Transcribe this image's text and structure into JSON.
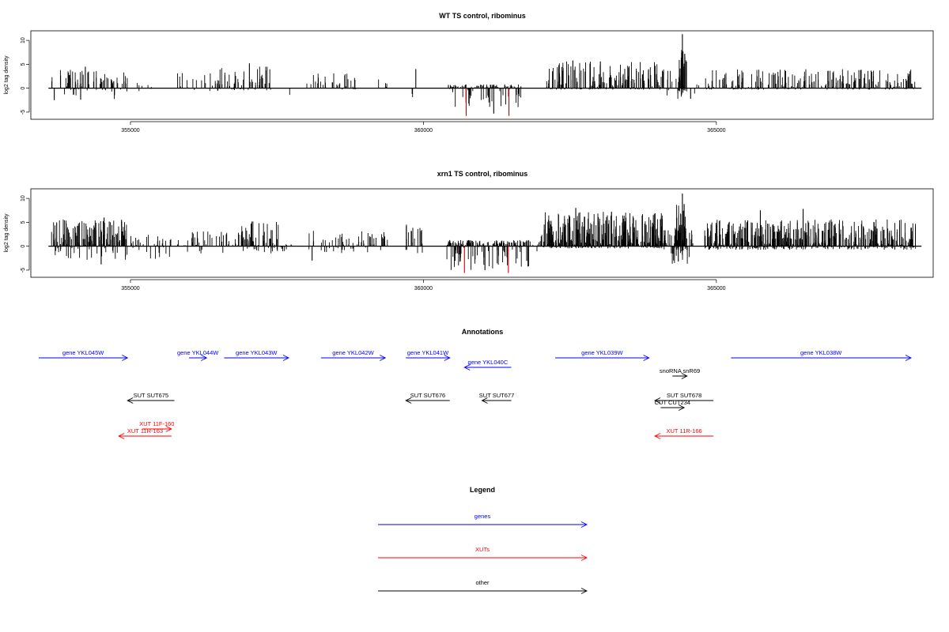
{
  "figure": {
    "annotations_title": "Annotations",
    "legend_title": "Legend"
  },
  "chart_data": [
    {
      "type": "bar",
      "title": "WT TS control, ribominus",
      "ylabel": "log2 tag density",
      "xlabel": "",
      "xlim": [
        353300,
        368700
      ],
      "ylim": [
        -6.5,
        12
      ],
      "yticks": [
        -5,
        0,
        5,
        10
      ],
      "xticks": [
        355000,
        360000,
        365000
      ],
      "baseline": [
        353600,
        368500
      ],
      "grid": false,
      "legend": "none",
      "colors": {
        "bar": "#000000",
        "highlight": "#cc0000"
      },
      "segments": [
        {
          "x": [
            353650,
            354950
          ],
          "pos": 2.5,
          "neg": -1.5,
          "density": 0.9
        },
        {
          "x": [
            355100,
            355500
          ],
          "pos": 1.0,
          "neg": -1.5,
          "density": 0.3
        },
        {
          "x": [
            355800,
            356500
          ],
          "pos": 2.0,
          "neg": -0.5,
          "density": 0.5
        },
        {
          "x": [
            356500,
            357400
          ],
          "pos": 3.0,
          "neg": -0.3,
          "density": 1.2
        },
        {
          "x": [
            357700,
            357750
          ],
          "pos": 0.0,
          "neg": -1.0,
          "density": 0.2
        },
        {
          "x": [
            358000,
            358900
          ],
          "pos": 2.0,
          "neg": -0.2,
          "density": 0.6
        },
        {
          "x": [
            359000,
            359400
          ],
          "pos": 1.5,
          "neg": -0.2,
          "density": 0.4
        },
        {
          "x": [
            359750,
            359850
          ],
          "pos": 3.0,
          "neg": -1.5,
          "density": 0.3
        },
        {
          "x": [
            360400,
            361700
          ],
          "pos": 0.5,
          "neg": -3.0,
          "density": 1.6
        },
        {
          "x": [
            362100,
            364100
          ],
          "pos": 3.5,
          "neg": -0.2,
          "density": 1.8
        },
        {
          "x": [
            364150,
            364500
          ],
          "pos": 2.5,
          "neg": -1.5,
          "density": 1.0
        },
        {
          "x": [
            364350,
            364500
          ],
          "pos": 5.0,
          "neg": -0.5,
          "density": 3.0
        },
        {
          "x": [
            364600,
            364750
          ],
          "pos": 1.0,
          "neg": -2.0,
          "density": 0.4
        },
        {
          "x": [
            364800,
            368400
          ],
          "pos": 2.5,
          "neg": -0.2,
          "density": 1.3
        }
      ],
      "spikes": [
        {
          "x": 354230,
          "y": 4.5
        },
        {
          "x": 357030,
          "y": 5.2
        },
        {
          "x": 359870,
          "y": 4.0
        },
        {
          "x": 362550,
          "y": 5.8
        },
        {
          "x": 363020,
          "y": 5.6
        },
        {
          "x": 364420,
          "y": 11.3
        },
        {
          "x": 364460,
          "y": 7.2
        },
        {
          "x": 360730,
          "y": -5.8,
          "color": "red"
        },
        {
          "x": 361460,
          "y": -5.8,
          "color": "red"
        },
        {
          "x": 361200,
          "y": -5.3
        },
        {
          "x": 354150,
          "y": -2.4
        },
        {
          "x": 353700,
          "y": -2.5
        },
        {
          "x": 364560,
          "y": -2.2
        }
      ]
    },
    {
      "type": "bar",
      "title": "xrn1 TS control, ribominus",
      "ylabel": "log2 tag density",
      "xlabel": "",
      "xlim": [
        353300,
        368700
      ],
      "ylim": [
        -6.5,
        12
      ],
      "yticks": [
        -5,
        0,
        5,
        10
      ],
      "xticks": [
        355000,
        360000,
        365000
      ],
      "baseline": [
        353600,
        368500
      ],
      "grid": false,
      "legend": "none",
      "colors": {
        "bar": "#000000",
        "highlight": "#cc0000"
      },
      "segments": [
        {
          "x": [
            353650,
            354950
          ],
          "pos": 3.5,
          "neg": -2.0,
          "density": 2.0
        },
        {
          "x": [
            355000,
            355700
          ],
          "pos": 1.5,
          "neg": -2.0,
          "density": 0.8
        },
        {
          "x": [
            355800,
            356900
          ],
          "pos": 2.0,
          "neg": -1.0,
          "density": 0.7
        },
        {
          "x": [
            356900,
            357600
          ],
          "pos": 3.5,
          "neg": -1.0,
          "density": 1.5
        },
        {
          "x": [
            357600,
            357900
          ],
          "pos": 0.5,
          "neg": -1.5,
          "density": 0.4
        },
        {
          "x": [
            358000,
            359400
          ],
          "pos": 2.0,
          "neg": -1.0,
          "density": 0.8
        },
        {
          "x": [
            359700,
            360000
          ],
          "pos": 3.0,
          "neg": -1.5,
          "density": 1.0
        },
        {
          "x": [
            360400,
            361800
          ],
          "pos": 0.8,
          "neg": -3.5,
          "density": 2.2
        },
        {
          "x": [
            361800,
            362000
          ],
          "pos": 1.0,
          "neg": -1.0,
          "density": 0.5
        },
        {
          "x": [
            362000,
            364100
          ],
          "pos": 4.5,
          "neg": -0.3,
          "density": 3.0
        },
        {
          "x": [
            364100,
            364600
          ],
          "pos": 3.0,
          "neg": -2.5,
          "density": 1.8
        },
        {
          "x": [
            364300,
            364500
          ],
          "pos": 5.5,
          "neg": -1.0,
          "density": 3.0
        },
        {
          "x": [
            364800,
            368400
          ],
          "pos": 3.5,
          "neg": -0.5,
          "density": 2.4
        }
      ],
      "spikes": [
        {
          "x": 354550,
          "y": 6.0
        },
        {
          "x": 357070,
          "y": 4.8
        },
        {
          "x": 362600,
          "y": 8.0
        },
        {
          "x": 363210,
          "y": 7.2
        },
        {
          "x": 364420,
          "y": 11.0
        },
        {
          "x": 364450,
          "y": 8.8
        },
        {
          "x": 365750,
          "y": 7.5
        },
        {
          "x": 366480,
          "y": 7.8
        },
        {
          "x": 360700,
          "y": -5.6,
          "color": "red"
        },
        {
          "x": 361450,
          "y": -5.6,
          "color": "red"
        },
        {
          "x": 361050,
          "y": -5.0
        },
        {
          "x": 354500,
          "y": -3.8
        },
        {
          "x": 364350,
          "y": -3.2
        },
        {
          "x": 358100,
          "y": -3.0
        }
      ]
    },
    {
      "type": "diagram",
      "title": "Annotations",
      "xlim": [
        353300,
        368700
      ],
      "features": [
        {
          "label": "gene YKL045W",
          "color": "blue",
          "dir": "right",
          "x0": 353400,
          "x1": 354950,
          "row": 0
        },
        {
          "label": "gene YKL044W",
          "color": "blue",
          "dir": "right",
          "x0": 356000,
          "x1": 356300,
          "row": 0
        },
        {
          "label": "gene YKL043W",
          "color": "blue",
          "dir": "right",
          "x0": 356600,
          "x1": 357700,
          "row": 0
        },
        {
          "label": "gene YKL042W",
          "color": "blue",
          "dir": "right",
          "x0": 358250,
          "x1": 359350,
          "row": 0
        },
        {
          "label": "gene YKL041W",
          "color": "blue",
          "dir": "right",
          "x0": 359700,
          "x1": 360450,
          "row": 0
        },
        {
          "label": "gene YKL040C",
          "color": "blue",
          "dir": "left",
          "x0": 360700,
          "x1": 361500,
          "row": 0.6
        },
        {
          "label": "gene YKL039W",
          "color": "blue",
          "dir": "right",
          "x0": 362250,
          "x1": 363850,
          "row": 0
        },
        {
          "label": "gene YKL038W",
          "color": "blue",
          "dir": "right",
          "x0": 365250,
          "x1": 368800,
          "row": 0
        },
        {
          "label": "snoRNA snR69",
          "color": "black",
          "dir": "right",
          "x0": 364250,
          "x1": 364500,
          "row": 1.15
        },
        {
          "label": "SUT SUT675",
          "color": "black",
          "dir": "left",
          "x0": 354950,
          "x1": 355750,
          "row": 2.7
        },
        {
          "label": "SUT SUT676",
          "color": "black",
          "dir": "left",
          "x0": 359700,
          "x1": 360450,
          "row": 2.7
        },
        {
          "label": "SUT SUT677",
          "color": "black",
          "dir": "left",
          "x0": 361000,
          "x1": 361500,
          "row": 2.7
        },
        {
          "label": "SUT SUT678",
          "color": "black",
          "dir": "left",
          "x0": 363950,
          "x1": 364950,
          "row": 2.7
        },
        {
          "label": "CUT CUT234",
          "color": "black",
          "dir": "right",
          "x0": 364050,
          "x1": 364450,
          "row": 3.15
        },
        {
          "label": "XUT 11F-160",
          "color": "red",
          "dir": "right",
          "x0": 355200,
          "x1": 355700,
          "row": 4.5
        },
        {
          "label": "XUT 11R-163",
          "color": "red",
          "dir": "left",
          "x0": 354800,
          "x1": 355700,
          "row": 4.95
        },
        {
          "label": "XUT 11R-166",
          "color": "red",
          "dir": "left",
          "x0": 363950,
          "x1": 364950,
          "row": 4.95
        }
      ]
    },
    {
      "type": "legend",
      "title": "Legend",
      "entries": [
        {
          "label": "genes",
          "color": "blue"
        },
        {
          "label": "XUTs",
          "color": "red"
        },
        {
          "label": "other",
          "color": "black"
        }
      ]
    }
  ]
}
